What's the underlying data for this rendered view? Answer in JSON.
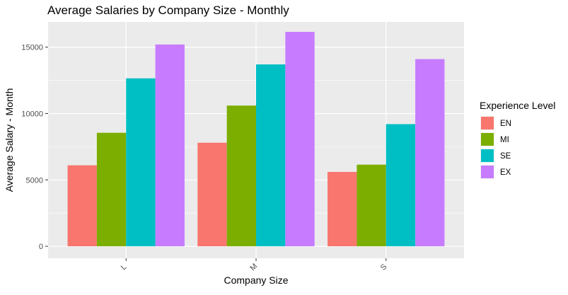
{
  "chart_data": {
    "type": "bar",
    "title": "Average Salaries by Company Size - Monthly",
    "xlabel": "Company Size",
    "ylabel": "Average Salary - Month",
    "categories": [
      "L",
      "M",
      "S"
    ],
    "ylim": [
      -900,
      16900
    ],
    "yticks": [
      0,
      5000,
      10000,
      15000
    ],
    "ytick_labels": [
      "0",
      "5000",
      "10000",
      "15000"
    ],
    "grid": true,
    "legend": {
      "title": "Experience Level",
      "position": "right"
    },
    "series": [
      {
        "name": "EN",
        "color": "#F8766D",
        "values": [
          6100,
          7800,
          5600
        ]
      },
      {
        "name": "MI",
        "color": "#7CAE00",
        "values": [
          8550,
          10600,
          6150
        ]
      },
      {
        "name": "SE",
        "color": "#00BFC4",
        "values": [
          12650,
          13700,
          9200
        ]
      },
      {
        "name": "EX",
        "color": "#C77CFF",
        "values": [
          15200,
          16150,
          14100
        ]
      }
    ]
  }
}
